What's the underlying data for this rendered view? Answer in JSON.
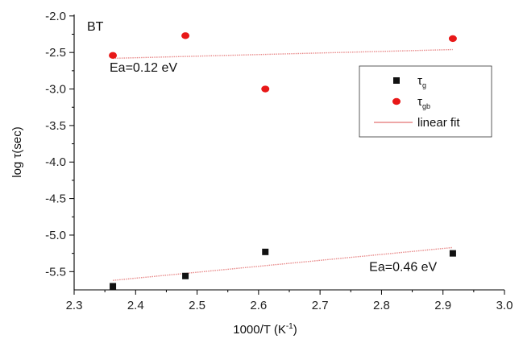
{
  "chart_data": {
    "type": "scatter",
    "title": "",
    "panel_label": "BT",
    "xlabel": "1000/T (K",
    "xlabel_sup": "-1",
    "xlabel_close": ")",
    "ylabel": "log τ(sec)",
    "xlim": [
      2.3,
      3.0
    ],
    "ylim": [
      -5.75,
      -1.98
    ],
    "x_ticks": [
      {
        "value": 2.3,
        "label": "2.3"
      },
      {
        "value": 2.4,
        "label": "2.4"
      },
      {
        "value": 2.5,
        "label": "2.5"
      },
      {
        "value": 2.6,
        "label": "2.6"
      },
      {
        "value": 2.7,
        "label": "2.7"
      },
      {
        "value": 2.8,
        "label": "2.8"
      },
      {
        "value": 2.9,
        "label": "2.9"
      },
      {
        "value": 3.0,
        "label": "3.0"
      }
    ],
    "y_ticks": [
      {
        "value": -2.0,
        "label": "-2.0"
      },
      {
        "value": -2.5,
        "label": "-2.5"
      },
      {
        "value": -3.0,
        "label": "-3.0"
      },
      {
        "value": -3.5,
        "label": "-3.5"
      },
      {
        "value": -4.0,
        "label": "-4.0"
      },
      {
        "value": -4.5,
        "label": "-4.5"
      },
      {
        "value": -5.0,
        "label": "-5.0"
      },
      {
        "value": -5.5,
        "label": "-5.5"
      }
    ],
    "grid": false,
    "legend_position": "upper-right",
    "series": [
      {
        "name": "τ",
        "name_sub": "g",
        "marker": "square",
        "color": "#111111",
        "points": [
          {
            "x": 2.363,
            "y": -5.7
          },
          {
            "x": 2.481,
            "y": -5.56
          },
          {
            "x": 2.611,
            "y": -5.23
          },
          {
            "x": 2.916,
            "y": -5.25
          }
        ]
      },
      {
        "name": "τ",
        "name_sub": "gb",
        "marker": "circle",
        "color": "#e81818",
        "points": [
          {
            "x": 2.363,
            "y": -2.54
          },
          {
            "x": 2.481,
            "y": -2.27
          },
          {
            "x": 2.611,
            "y": -3.0
          },
          {
            "x": 2.916,
            "y": -2.31
          }
        ]
      }
    ],
    "fit_legend_label": "linear fit",
    "fit_color": "#e88a8a",
    "fits": [
      {
        "x1": 2.363,
        "y1": -2.58,
        "x2": 2.916,
        "y2": -2.46,
        "annotation": "Ea=0.12 eV"
      },
      {
        "x1": 2.363,
        "y1": -5.62,
        "x2": 2.916,
        "y2": -5.17,
        "annotation": "Ea=0.46 eV"
      }
    ]
  }
}
